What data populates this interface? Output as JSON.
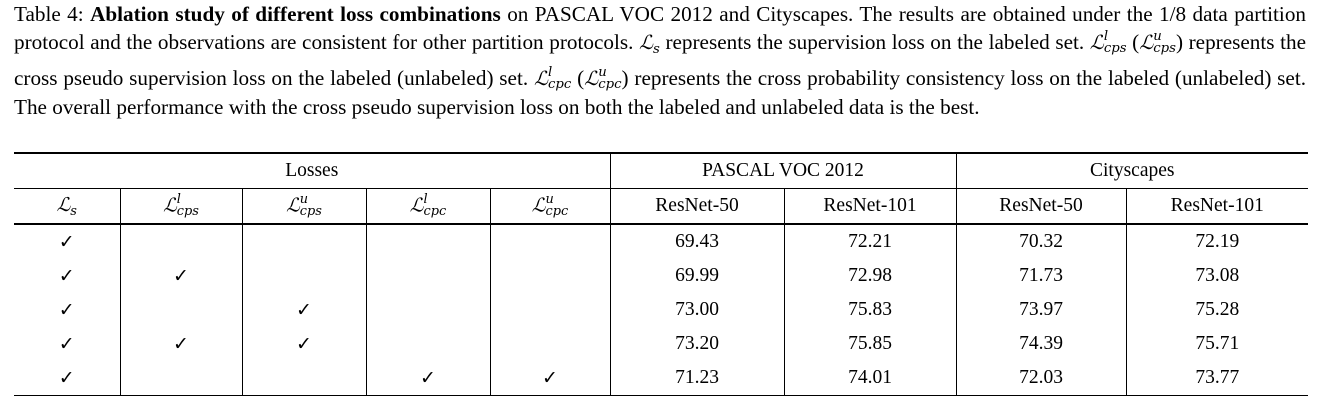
{
  "caption": {
    "label": "Table 4:",
    "bold_title": "Ablation study of different loss combinations",
    "seg1": " on PASCAL VOC 2012 and Cityscapes. The results are obtained under the 1/8 data partition protocol and the observations are consistent for other partition protocols. ",
    "seg2": " represents the supervision loss on the labeled set. ",
    "seg3": " represents the cross pseudo supervision loss on the labeled (unlabeled) set. ",
    "seg4": " represents the cross probability consistency loss on the labeled (unlabeled) set. The overall performance with the cross pseudo supervision loss on both the labeled and unlabeled data is the best."
  },
  "table": {
    "group_headers": [
      "Losses",
      "PASCAL VOC 2012",
      "Cityscapes"
    ],
    "loss_headers": [
      "ℒs",
      "ℒlcps",
      "ℒucps",
      "ℒlcpc",
      "ℒucpc"
    ],
    "backbone_headers": [
      "ResNet-50",
      "ResNet-101",
      "ResNet-50",
      "ResNet-101"
    ],
    "check_mark": "✓",
    "rows": [
      {
        "checks": [
          true,
          false,
          false,
          false,
          false
        ],
        "values": [
          "69.43",
          "72.21",
          "70.32",
          "72.19"
        ],
        "bold": false
      },
      {
        "checks": [
          true,
          true,
          false,
          false,
          false
        ],
        "values": [
          "69.99",
          "72.98",
          "71.73",
          "73.08"
        ],
        "bold": false
      },
      {
        "checks": [
          true,
          false,
          true,
          false,
          false
        ],
        "values": [
          "73.00",
          "75.83",
          "73.97",
          "75.28"
        ],
        "bold": false
      },
      {
        "checks": [
          true,
          true,
          true,
          false,
          false
        ],
        "values": [
          "73.20",
          "75.85",
          "74.39",
          "75.71"
        ],
        "bold": true
      },
      {
        "checks": [
          true,
          false,
          false,
          true,
          true
        ],
        "values": [
          "71.23",
          "74.01",
          "72.03",
          "73.77"
        ],
        "bold": false
      }
    ]
  }
}
